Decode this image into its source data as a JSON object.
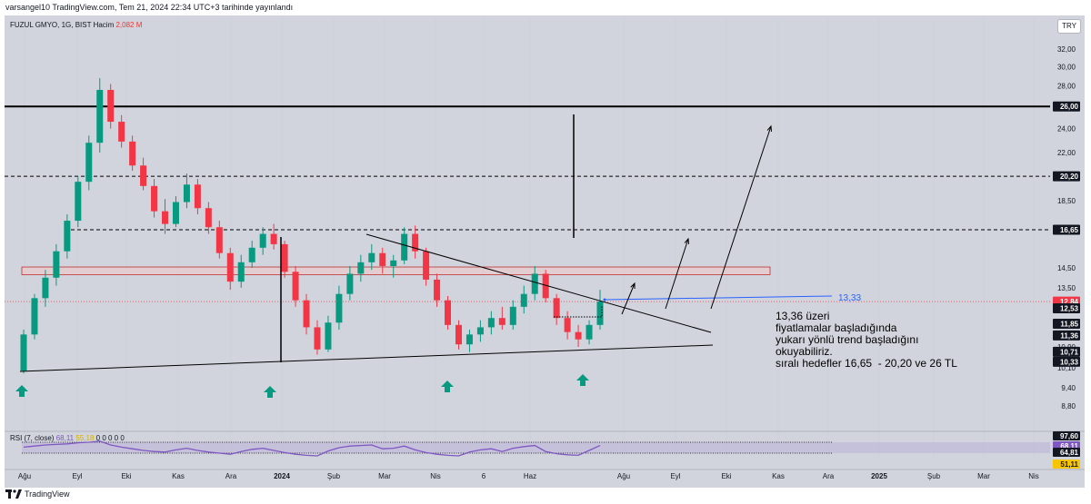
{
  "header": {
    "published_line": "varsangel10 TradingView.com, Tem 21, 2024 22:34 UTC+3 tarihinde yayınlandı"
  },
  "symbol": {
    "name_line": "FUZUL GMYO, 1G, BIST  Hacim",
    "volume": "2,082 M"
  },
  "currency_button": "TRY",
  "rsi_header": {
    "label": "RSI (7, close)",
    "value": "68,11",
    "ma_value": "55,18",
    "zeros": "0 0 0 0 0"
  },
  "brand": "TradingView",
  "annotation": {
    "label_1333": "13,33",
    "note": "13,36 üzeri\nfiyatlamalar başladığında\nyukarı yönlü trend başladığını\nokuyabiliriz.\nsıralı hedefler 16,65  - 20,20 ve 26 TL"
  },
  "colors": {
    "up": "#089981",
    "down": "#f23645",
    "arrow": "#089981",
    "rsi": "#7e57c2",
    "trend_blue": "#2962ff",
    "zone_fill": "#f3c6c6",
    "zone_border": "#b71c1c",
    "current_price_tag": "#f23645"
  },
  "chart_data": {
    "type": "candlestick",
    "symbol": "FUZUL GMYO",
    "timeframe": "1G",
    "exchange": "BIST",
    "y_scale": "log",
    "ylim": [
      8.3,
      33.5
    ],
    "price_ticks": [
      "32,00",
      "30,00",
      "28,00",
      "26,00",
      "24,00",
      "22,00",
      "20,20",
      "18,50",
      "16,65",
      "14,50",
      "13,50",
      "12,53",
      "11,85",
      "11,36",
      "10,90",
      "10,71",
      "10,33",
      "10,10",
      "9,40",
      "8,80"
    ],
    "x_labels": [
      "Ağu",
      "Eyl",
      "Eki",
      "Kas",
      "Ara",
      "2024",
      "Şub",
      "Mar",
      "Nis",
      "6",
      "Haz",
      "Ağu",
      "Eyl",
      "Eki",
      "Kas",
      "Ara",
      "2025",
      "Şub",
      "Mar",
      "Nis"
    ],
    "price_tags": [
      {
        "label": "26,00",
        "kind": "level"
      },
      {
        "label": "20,20",
        "kind": "level"
      },
      {
        "label": "16,65",
        "kind": "level"
      },
      {
        "label": "12,84",
        "kind": "current"
      },
      {
        "label": "12,53",
        "kind": "level"
      },
      {
        "label": "11,85",
        "kind": "level"
      },
      {
        "label": "11,36",
        "kind": "level"
      },
      {
        "label": "10,71",
        "kind": "level"
      },
      {
        "label": "10,33",
        "kind": "level"
      }
    ],
    "rsi_ticks": [
      "97,60",
      "68,11",
      "64,81",
      "51,11"
    ],
    "current_price": 12.84,
    "horizontal_levels": [
      26.0,
      20.2,
      16.65
    ],
    "resistance_zone": [
      14.15,
      14.55
    ],
    "bottom_markers": [
      "Ağu",
      "Ara",
      "Nis",
      "Tem"
    ],
    "candles": [
      {
        "m": "Ağu",
        "o": 10.0,
        "h": 11.6,
        "l": 9.9,
        "c": 11.4
      },
      {
        "m": "Ağu",
        "o": 11.4,
        "h": 13.2,
        "l": 11.2,
        "c": 13.0
      },
      {
        "m": "Ağu",
        "o": 13.0,
        "h": 14.4,
        "l": 12.6,
        "c": 14.0
      },
      {
        "m": "Ağu",
        "o": 14.0,
        "h": 15.8,
        "l": 13.6,
        "c": 15.4
      },
      {
        "m": "Ağu",
        "o": 15.4,
        "h": 17.6,
        "l": 15.0,
        "c": 17.2
      },
      {
        "m": "Ağu",
        "o": 17.2,
        "h": 20.2,
        "l": 16.8,
        "c": 19.8
      },
      {
        "m": "Ağu",
        "o": 19.8,
        "h": 23.4,
        "l": 19.2,
        "c": 22.8
      },
      {
        "m": "Eyl",
        "o": 22.8,
        "h": 28.8,
        "l": 22.0,
        "c": 27.6
      },
      {
        "m": "Eyl",
        "o": 27.6,
        "h": 28.2,
        "l": 24.0,
        "c": 24.6
      },
      {
        "m": "Eyl",
        "o": 24.6,
        "h": 25.2,
        "l": 22.4,
        "c": 22.9
      },
      {
        "m": "Eyl",
        "o": 22.9,
        "h": 23.4,
        "l": 20.6,
        "c": 21.0
      },
      {
        "m": "Eyl",
        "o": 21.0,
        "h": 21.6,
        "l": 19.2,
        "c": 19.5
      },
      {
        "m": "Eyl",
        "o": 19.5,
        "h": 20.0,
        "l": 17.4,
        "c": 17.8
      },
      {
        "m": "Eki",
        "o": 17.8,
        "h": 18.6,
        "l": 16.4,
        "c": 17.0
      },
      {
        "m": "Eki",
        "o": 17.0,
        "h": 18.8,
        "l": 16.8,
        "c": 18.4
      },
      {
        "m": "Eki",
        "o": 18.4,
        "h": 20.4,
        "l": 18.0,
        "c": 19.6
      },
      {
        "m": "Eki",
        "o": 19.6,
        "h": 20.0,
        "l": 17.6,
        "c": 18.0
      },
      {
        "m": "Eki",
        "o": 18.0,
        "h": 18.4,
        "l": 16.4,
        "c": 16.8
      },
      {
        "m": "Kas",
        "o": 16.8,
        "h": 17.2,
        "l": 15.0,
        "c": 15.3
      },
      {
        "m": "Kas",
        "o": 15.3,
        "h": 15.6,
        "l": 13.4,
        "c": 13.8
      },
      {
        "m": "Kas",
        "o": 13.8,
        "h": 15.2,
        "l": 13.5,
        "c": 14.8
      },
      {
        "m": "Kas",
        "o": 14.8,
        "h": 16.0,
        "l": 14.5,
        "c": 15.6
      },
      {
        "m": "Kas",
        "o": 15.6,
        "h": 16.8,
        "l": 15.2,
        "c": 16.4
      },
      {
        "m": "Ara",
        "o": 16.4,
        "h": 17.0,
        "l": 15.5,
        "c": 15.8
      },
      {
        "m": "Ara",
        "o": 15.8,
        "h": 16.0,
        "l": 14.0,
        "c": 14.3
      },
      {
        "m": "Ara",
        "o": 14.3,
        "h": 14.6,
        "l": 12.6,
        "c": 12.9
      },
      {
        "m": "Ara",
        "o": 12.9,
        "h": 13.2,
        "l": 11.4,
        "c": 11.7
      },
      {
        "m": "Ara",
        "o": 11.7,
        "h": 12.0,
        "l": 10.6,
        "c": 10.8
      },
      {
        "m": "2024",
        "o": 10.8,
        "h": 12.2,
        "l": 10.7,
        "c": 11.9
      },
      {
        "m": "2024",
        "o": 11.9,
        "h": 13.6,
        "l": 11.6,
        "c": 13.2
      },
      {
        "m": "2024",
        "o": 13.2,
        "h": 14.6,
        "l": 12.9,
        "c": 14.2
      },
      {
        "m": "2024",
        "o": 14.2,
        "h": 15.2,
        "l": 13.8,
        "c": 14.8
      },
      {
        "m": "Şub",
        "o": 14.8,
        "h": 15.8,
        "l": 14.4,
        "c": 15.3
      },
      {
        "m": "Şub",
        "o": 15.3,
        "h": 15.6,
        "l": 14.2,
        "c": 14.6
      },
      {
        "m": "Şub",
        "o": 14.6,
        "h": 15.2,
        "l": 14.0,
        "c": 14.9
      },
      {
        "m": "Şub",
        "o": 14.9,
        "h": 16.8,
        "l": 14.7,
        "c": 16.4
      },
      {
        "m": "Mar",
        "o": 16.4,
        "h": 16.9,
        "l": 15.0,
        "c": 15.4
      },
      {
        "m": "Mar",
        "o": 15.4,
        "h": 15.6,
        "l": 13.6,
        "c": 13.9
      },
      {
        "m": "Mar",
        "o": 13.9,
        "h": 14.2,
        "l": 12.6,
        "c": 12.9
      },
      {
        "m": "Mar",
        "o": 12.9,
        "h": 13.1,
        "l": 11.6,
        "c": 11.8
      },
      {
        "m": "Nis",
        "o": 11.8,
        "h": 12.0,
        "l": 10.8,
        "c": 11.0
      },
      {
        "m": "Nis",
        "o": 11.0,
        "h": 11.6,
        "l": 10.7,
        "c": 11.4
      },
      {
        "m": "Nis",
        "o": 11.4,
        "h": 12.0,
        "l": 11.1,
        "c": 11.7
      },
      {
        "m": "Nis",
        "o": 11.7,
        "h": 12.4,
        "l": 11.4,
        "c": 12.1
      },
      {
        "m": "6",
        "o": 12.1,
        "h": 12.6,
        "l": 11.6,
        "c": 11.8
      },
      {
        "m": "6",
        "o": 11.8,
        "h": 12.9,
        "l": 11.6,
        "c": 12.6
      },
      {
        "m": "6",
        "o": 12.6,
        "h": 13.6,
        "l": 12.3,
        "c": 13.2
      },
      {
        "m": "Haz",
        "o": 13.2,
        "h": 14.6,
        "l": 12.9,
        "c": 14.2
      },
      {
        "m": "Haz",
        "o": 14.2,
        "h": 14.4,
        "l": 12.8,
        "c": 13.0
      },
      {
        "m": "Haz",
        "o": 13.0,
        "h": 13.2,
        "l": 11.8,
        "c": 12.1
      },
      {
        "m": "Haz",
        "o": 12.1,
        "h": 12.4,
        "l": 11.2,
        "c": 11.5
      },
      {
        "m": "Tem",
        "o": 11.5,
        "h": 11.8,
        "l": 10.9,
        "c": 11.2
      },
      {
        "m": "Tem",
        "o": 11.2,
        "h": 12.0,
        "l": 11.0,
        "c": 11.8
      },
      {
        "m": "Tem",
        "o": 11.8,
        "h": 13.4,
        "l": 11.6,
        "c": 12.84
      }
    ],
    "rsi_values": [
      62,
      66,
      70,
      72,
      74,
      78,
      80,
      84,
      70,
      62,
      56,
      50,
      46,
      44,
      52,
      58,
      50,
      44,
      40,
      36,
      46,
      54,
      58,
      50,
      42,
      36,
      32,
      30,
      48,
      60,
      66,
      68,
      70,
      56,
      58,
      66,
      52,
      42,
      36,
      32,
      30,
      44,
      52,
      56,
      46,
      58,
      64,
      68,
      46,
      38,
      34,
      32,
      50,
      68.11
    ]
  }
}
